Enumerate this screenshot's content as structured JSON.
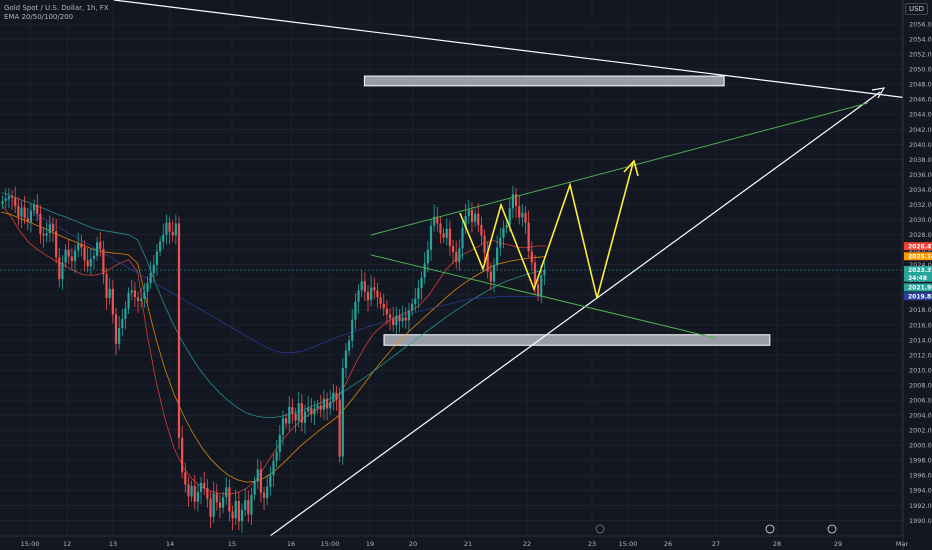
{
  "legend": {
    "symbol": "Gold Spot / U.S. Dollar, 1h, FX",
    "indicator": "EMA 20/50/100/200"
  },
  "currency": "USD",
  "colors": {
    "background": "#131722",
    "up": "#26a69a",
    "down": "#ef5350",
    "ema20": "#f44336",
    "ema50": "#ff9800",
    "ema100": "#26a69a",
    "ema200": "#2a3f9b",
    "channel": "#4caf50",
    "zigzag": "#ffeb3b",
    "trend": "#ffffff",
    "zone_fill": "#b2b5be"
  },
  "chart_data": {
    "type": "candlestick",
    "ylim": [
      1988,
      2058
    ],
    "y_ticks": [
      1990,
      1992,
      1994,
      1996,
      1998,
      2000,
      2002,
      2004,
      2006,
      2008,
      2010,
      2012,
      2014,
      2016,
      2018,
      2020,
      2022,
      2024,
      2026,
      2028,
      2030,
      2032,
      2034,
      2036,
      2038,
      2040,
      2042,
      2044,
      2046,
      2048,
      2050,
      2052,
      2054,
      2056
    ],
    "x_ticks": [
      "15:00",
      "12",
      "13",
      "14",
      "15",
      "16",
      "15:00",
      "19",
      "20",
      "21",
      "22",
      "23",
      "15:00",
      "26",
      "27",
      "28",
      "29",
      "Mar"
    ],
    "price_tags": [
      {
        "label": "2026.47",
        "value": 2026.47,
        "color": "#f44336"
      },
      {
        "label": "2025.14",
        "value": 2025.14,
        "color": "#ff9800"
      },
      {
        "label": "2023.31",
        "value": 2023.31,
        "color": "#26a69a"
      },
      {
        "label": "34:48",
        "value": 2022.3,
        "color": "#26a69a"
      },
      {
        "label": "2021.99",
        "value": 2021.0,
        "color": "#26a69a"
      },
      {
        "label": "2019.82",
        "value": 2019.82,
        "color": "#2a3f9b"
      }
    ],
    "candles_close": [
      2032.5,
      2032.8,
      2033.1,
      2032.9,
      2031.8,
      2030.4,
      2031.6,
      2030.2,
      2029.7,
      2031.2,
      2032.0,
      2030.8,
      2028.1,
      2027.9,
      2028.2,
      2029.4,
      2028.5,
      2025.0,
      2022.1,
      2024.3,
      2026.0,
      2025.1,
      2024.5,
      2025.9,
      2026.8,
      2026.3,
      2024.6,
      2023.8,
      2024.8,
      2025.2,
      2027.0,
      2026.1,
      2022.8,
      2019.6,
      2020.8,
      2017.4,
      2013.5,
      2015.6,
      2016.8,
      2018.2,
      2020.3,
      2020.6,
      2019.7,
      2019.2,
      2019.5,
      2020.4,
      2021.6,
      2022.9,
      2024.0,
      2025.8,
      2027.1,
      2028.0,
      2029.6,
      2028.4,
      2027.9,
      2029.5,
      2001.0,
      1996.4,
      1994.8,
      1993.2,
      1994.6,
      1992.5,
      1993.8,
      1995.0,
      1994.3,
      1992.9,
      1990.5,
      1993.6,
      1992.4,
      1991.7,
      1993.1,
      1994.4,
      1991.2,
      1990.3,
      1992.6,
      1989.9,
      1991.4,
      1992.7,
      1990.8,
      1993.4,
      1995.2,
      1996.8,
      1993.7,
      1993.0,
      1994.5,
      1996.0,
      1997.9,
      1999.1,
      2001.4,
      2003.6,
      2002.9,
      2005.1,
      2004.2,
      2003.3,
      2005.6,
      2003.0,
      2004.5,
      2005.0,
      2004.1,
      2004.9,
      2005.3,
      2004.7,
      2006.2,
      2004.9,
      2005.8,
      2007.0,
      2006.1,
      1998.5,
      2010.3,
      2012.6,
      2013.9,
      2016.7,
      2019.1,
      2020.6,
      2021.8,
      2020.4,
      2019.3,
      2021.0,
      2020.6,
      2019.7,
      2018.8,
      2018.2,
      2017.4,
      2016.9,
      2016.0,
      2017.2,
      2016.5,
      2017.0,
      2016.6,
      2017.9,
      2018.8,
      2019.5,
      2020.9,
      2022.3,
      2024.2,
      2026.0,
      2029.2,
      2030.4,
      2029.5,
      2028.2,
      2027.6,
      2028.8,
      2026.5,
      2025.7,
      2024.4,
      2026.2,
      2028.9,
      2030.5,
      2031.3,
      2029.7,
      2030.8,
      2029.3,
      2027.9,
      2025.6,
      2023.1,
      2021.8,
      2024.0,
      2026.3,
      2027.6,
      2028.9,
      2029.3,
      2031.5,
      2033.4,
      2031.8,
      2030.3,
      2030.9,
      2029.6,
      2025.8,
      2024.3,
      2021.4,
      2019.9,
      2022.6,
      2023.3
    ],
    "ema": [
      {
        "name": "EMA 20",
        "values": [
          2032.0,
          2030.5,
          2028.5,
          2027.0,
          2026.0,
          2025.2,
          2024.5,
          2023.9,
          2023.2,
          2022.7,
          2022.6,
          2022.8,
          2023.5,
          2024.2,
          2024.7,
          2023.0,
          2015.0,
          2008.6,
          2003.5,
          1999.6,
          1997.1,
          1995.5,
          1994.5,
          1993.9,
          1993.6,
          1993.5,
          1993.7,
          1994.3,
          1995.4,
          1997.2,
          1999.1,
          2000.8,
          2002.2,
          2003.4,
          2004.2,
          2005.0,
          2005.4,
          2006.2,
          2008.4,
          2010.9,
          2013.1,
          2014.9,
          2016.0,
          2016.8,
          2017.4,
          2017.9,
          2018.6,
          2019.9,
          2021.7,
          2023.4,
          2024.7,
          2025.5,
          2026.1,
          2026.8,
          2027.3,
          2026.9,
          2026.6,
          2026.3,
          2026.3,
          2026.5,
          2026.5
        ]
      },
      {
        "name": "EMA 50",
        "values": [
          2031.0,
          2030.7,
          2030.2,
          2029.7,
          2029.2,
          2028.7,
          2028.1,
          2027.6,
          2027.1,
          2026.6,
          2026.1,
          2025.8,
          2025.6,
          2025.5,
          2025.3,
          2024.2,
          2019.0,
          2014.2,
          2010.1,
          2006.8,
          2004.1,
          2001.8,
          1999.8,
          1998.2,
          1997.0,
          1996.0,
          1995.4,
          1995.1,
          1995.2,
          1995.7,
          1996.5,
          1997.6,
          1998.8,
          2000.0,
          2001.0,
          2002.0,
          2002.9,
          2003.8,
          2005.2,
          2006.7,
          2008.3,
          2009.9,
          2011.4,
          2012.8,
          2014.1,
          2015.3,
          2016.4,
          2017.5,
          2018.6,
          2019.7,
          2020.7,
          2021.6,
          2022.4,
          2023.1,
          2023.8,
          2024.2,
          2024.5,
          2024.7,
          2024.9,
          2025.0,
          2025.1
        ]
      },
      {
        "name": "EMA 100",
        "values": [
          2033.6,
          2033.2,
          2032.7,
          2032.3,
          2031.8,
          2031.3,
          2030.8,
          2030.4,
          2029.9,
          2029.4,
          2028.9,
          2028.6,
          2028.4,
          2028.2,
          2028.0,
          2027.3,
          2024.6,
          2021.4,
          2018.5,
          2015.9,
          2013.6,
          2011.6,
          2009.8,
          2008.3,
          2007.0,
          2005.9,
          2005.0,
          2004.3,
          2003.9,
          2003.7,
          2003.7,
          2003.9,
          2004.2,
          2004.6,
          2005.1,
          2005.6,
          2006.1,
          2006.7,
          2007.4,
          2008.2,
          2009.0,
          2009.9,
          2010.8,
          2011.7,
          2012.6,
          2013.5,
          2014.4,
          2015.3,
          2016.2,
          2017.1,
          2017.9,
          2018.7,
          2019.5,
          2020.2,
          2020.9,
          2021.5,
          2022.0,
          2022.4,
          2022.8,
          2023.1,
          2023.3
        ]
      },
      {
        "name": "EMA 200",
        "values": [
          2033.0,
          2032.6,
          2032.0,
          2031.3,
          2030.6,
          2029.9,
          2029.2,
          2028.5,
          2027.8,
          2027.1,
          2026.4,
          2025.7,
          2025.0,
          2024.3,
          2023.6,
          2022.9,
          2022.2,
          2021.5,
          2020.8,
          2020.1,
          2019.4,
          2018.7,
          2018.0,
          2017.3,
          2016.6,
          2015.9,
          2015.2,
          2014.5,
          2013.8,
          2013.1,
          2012.6,
          2012.3,
          2012.3,
          2012.5,
          2012.9,
          2013.4,
          2013.9,
          2014.4,
          2014.8,
          2015.2,
          2015.6,
          2016.0,
          2016.4,
          2016.8,
          2017.2,
          2017.5,
          2017.8,
          2018.1,
          2018.4,
          2018.7,
          2019.0,
          2019.3,
          2019.5,
          2019.6,
          2019.7,
          2019.8,
          2019.8,
          2019.8,
          2019.8,
          2019.8,
          2019.8
        ]
      }
    ],
    "zones": [
      {
        "x0": 0.391,
        "x1": 0.777,
        "y_top": 2049.1,
        "y_bottom": 2047.8
      },
      {
        "x0": 0.412,
        "x1": 0.826,
        "y_top": 2014.7,
        "y_bottom": 2013.3
      }
    ]
  }
}
